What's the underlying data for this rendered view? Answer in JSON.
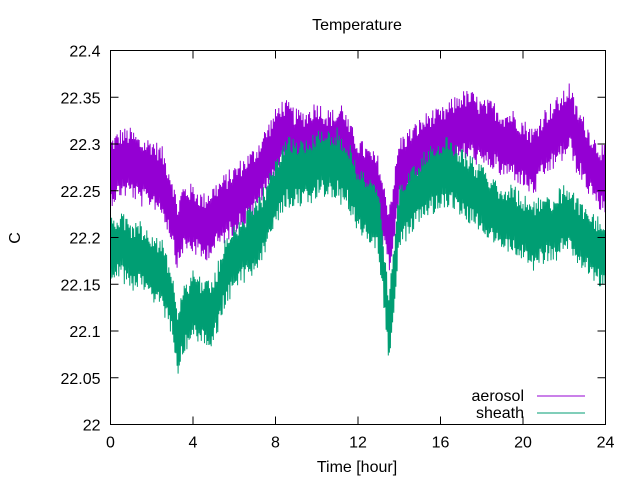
{
  "chart_data": {
    "type": "line",
    "title": "Temperature",
    "xlabel": "Time [hour]",
    "ylabel": "C",
    "xlim": [
      0,
      24
    ],
    "ylim": [
      22,
      22.4
    ],
    "xticks": [
      0,
      4,
      8,
      12,
      16,
      20,
      24
    ],
    "yticks": [
      22,
      22.05,
      22.1,
      22.15,
      22.2,
      22.25,
      22.3,
      22.35,
      22.4
    ],
    "ytick_labels": [
      "22",
      "22.05",
      "22.1",
      "22.15",
      "22.2",
      "22.25",
      "22.3",
      "22.35",
      "22.4"
    ],
    "grid": false,
    "legend_position": "bottom-right",
    "series": [
      {
        "name": "aerosol",
        "color": "#9400d3",
        "x": [
          0,
          0.5,
          1,
          1.5,
          2,
          2.5,
          3,
          3.25,
          3.5,
          4,
          4.5,
          5,
          5.5,
          6,
          6.5,
          7,
          7.5,
          8,
          8.25,
          8.5,
          9,
          9.5,
          10,
          10.5,
          11,
          11.25,
          11.5,
          12,
          12.5,
          13,
          13.25,
          13.5,
          13.75,
          14,
          14.5,
          15,
          15.5,
          16,
          16.5,
          17,
          17.5,
          18,
          18.5,
          19,
          19.5,
          20,
          20.5,
          21,
          21.5,
          22,
          22.25,
          22.5,
          23,
          23.5,
          24
        ],
        "y": [
          22.27,
          22.28,
          22.28,
          22.27,
          22.27,
          22.26,
          22.23,
          22.2,
          22.22,
          22.22,
          22.21,
          22.22,
          22.23,
          22.24,
          22.25,
          22.26,
          22.28,
          22.3,
          22.31,
          22.31,
          22.3,
          22.3,
          22.31,
          22.3,
          22.3,
          22.31,
          22.29,
          22.27,
          22.26,
          22.25,
          22.22,
          22.2,
          22.23,
          22.27,
          22.28,
          22.29,
          22.3,
          22.3,
          22.31,
          22.32,
          22.32,
          22.31,
          22.31,
          22.3,
          22.3,
          22.29,
          22.28,
          22.3,
          22.31,
          22.32,
          22.33,
          22.31,
          22.29,
          22.27,
          22.26
        ]
      },
      {
        "name": "sheath",
        "color": "#009e73",
        "x": [
          0,
          0.5,
          1,
          1.5,
          2,
          2.5,
          3,
          3.25,
          3.5,
          4,
          4.5,
          5,
          5.5,
          6,
          6.5,
          7,
          7.5,
          8,
          8.25,
          8.5,
          9,
          9.5,
          10,
          10.5,
          11,
          11.25,
          11.5,
          12,
          12.5,
          13,
          13.25,
          13.5,
          13.75,
          14,
          14.5,
          15,
          15.5,
          16,
          16.5,
          17,
          17.5,
          18,
          18.5,
          19,
          19.5,
          20,
          20.5,
          21,
          21.5,
          22,
          22.25,
          22.5,
          23,
          23.5,
          24
        ],
        "y": [
          22.19,
          22.19,
          22.18,
          22.18,
          22.17,
          22.16,
          22.13,
          22.09,
          22.11,
          22.13,
          22.12,
          22.12,
          22.16,
          22.18,
          22.19,
          22.2,
          22.22,
          22.25,
          22.26,
          22.27,
          22.27,
          22.27,
          22.28,
          22.28,
          22.28,
          22.27,
          22.27,
          22.24,
          22.23,
          22.22,
          22.16,
          22.1,
          22.16,
          22.22,
          22.24,
          22.25,
          22.26,
          22.27,
          22.27,
          22.26,
          22.25,
          22.24,
          22.23,
          22.22,
          22.22,
          22.21,
          22.2,
          22.21,
          22.21,
          22.22,
          22.22,
          22.21,
          22.2,
          22.19,
          22.18
        ]
      }
    ]
  }
}
